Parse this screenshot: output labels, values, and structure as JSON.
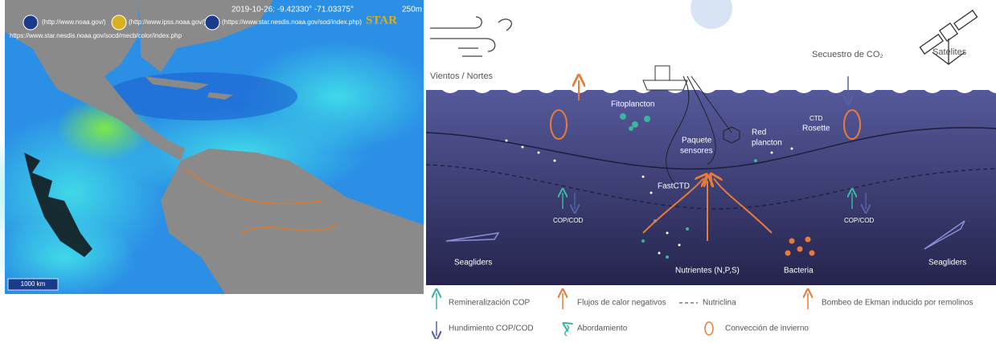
{
  "map": {
    "timestamp": "2019-10-26: -9.42330° -71.03375°",
    "resolution": "250m",
    "links": [
      "(http://www.noaa.gov/)",
      "(http://www.ipss.noaa.gov/)",
      "(https://www.star.nesdis.noaa.gov/sod/index.php)"
    ],
    "logo": "STAR",
    "url": "https://www.star.nesdis.noaa.gov/socd/mecb/color/index.php",
    "scale": "1000 km"
  },
  "diagram": {
    "winds": "Vientos / Nortes",
    "satellites": "Satélites",
    "co2": "Secuestro de CO₂",
    "phytoplankton": "Fitoplancton",
    "sensor_package": [
      "Paquete",
      "sensores"
    ],
    "plankton_net": [
      "Red",
      "plancton"
    ],
    "ctd_rosette": [
      "CTD",
      "Rosette"
    ],
    "fastctd": "FastCTD",
    "cop_cod_left": "COP/COD",
    "cop_cod_right": "COP/COD",
    "seagliders_left": "Seagliders",
    "seagliders_right": "Seagliders",
    "nutrients": "Nutrientes (N,P,S)",
    "bacteria": "Bacteria"
  },
  "legend": {
    "remineralization": "Remineralización COP",
    "heat_flux": "Flujos de calor negativos",
    "nutricline": "Nutriclina",
    "ekman": "Bombeo de Ekman inducido por remolinos",
    "sinking": "Hundimiento COP/COD",
    "abduction": "Abordamiento",
    "convection": "Convección de invierno"
  }
}
